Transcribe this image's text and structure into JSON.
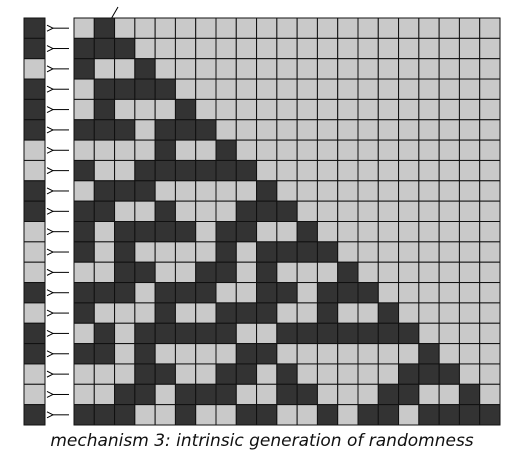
{
  "cells": [
    [
      0,
      1,
      0,
      0,
      0,
      0,
      0,
      0,
      0,
      0,
      0,
      0,
      0,
      0,
      0,
      0,
      0,
      0,
      0,
      0,
      0
    ],
    [
      1,
      1,
      1,
      0,
      0,
      0,
      0,
      0,
      0,
      0,
      0,
      0,
      0,
      0,
      0,
      0,
      0,
      0,
      0,
      0,
      0
    ],
    [
      1,
      0,
      0,
      1,
      0,
      0,
      0,
      0,
      0,
      0,
      0,
      0,
      0,
      0,
      0,
      0,
      0,
      0,
      0,
      0,
      0
    ],
    [
      0,
      1,
      1,
      1,
      1,
      0,
      0,
      0,
      0,
      0,
      0,
      0,
      0,
      0,
      0,
      0,
      0,
      0,
      0,
      0,
      0
    ],
    [
      0,
      1,
      0,
      0,
      0,
      1,
      0,
      0,
      0,
      0,
      0,
      0,
      0,
      0,
      0,
      0,
      0,
      0,
      0,
      0,
      0
    ],
    [
      1,
      1,
      1,
      0,
      1,
      1,
      1,
      0,
      0,
      0,
      0,
      0,
      0,
      0,
      0,
      0,
      0,
      0,
      0,
      0,
      0
    ],
    [
      0,
      0,
      0,
      0,
      1,
      0,
      0,
      1,
      0,
      0,
      0,
      0,
      0,
      0,
      0,
      0,
      0,
      0,
      0,
      0,
      0
    ],
    [
      1,
      0,
      0,
      1,
      1,
      1,
      1,
      1,
      1,
      0,
      0,
      0,
      0,
      0,
      0,
      0,
      0,
      0,
      0,
      0,
      0
    ],
    [
      0,
      1,
      1,
      1,
      0,
      0,
      0,
      0,
      0,
      1,
      0,
      0,
      0,
      0,
      0,
      0,
      0,
      0,
      0,
      0,
      0
    ],
    [
      1,
      1,
      0,
      0,
      1,
      0,
      0,
      0,
      1,
      1,
      1,
      0,
      0,
      0,
      0,
      0,
      0,
      0,
      0,
      0,
      0
    ],
    [
      1,
      0,
      1,
      1,
      1,
      1,
      0,
      1,
      1,
      0,
      0,
      1,
      0,
      0,
      0,
      0,
      0,
      0,
      0,
      0,
      0
    ],
    [
      1,
      0,
      1,
      0,
      0,
      0,
      0,
      1,
      0,
      1,
      1,
      1,
      1,
      0,
      0,
      0,
      0,
      0,
      0,
      0,
      0
    ],
    [
      0,
      0,
      1,
      1,
      0,
      0,
      1,
      1,
      0,
      1,
      0,
      0,
      0,
      1,
      0,
      0,
      0,
      0,
      0,
      0,
      0
    ],
    [
      1,
      1,
      1,
      0,
      1,
      1,
      1,
      0,
      0,
      1,
      1,
      0,
      1,
      1,
      1,
      0,
      0,
      0,
      0,
      0,
      0
    ],
    [
      1,
      0,
      0,
      0,
      1,
      0,
      0,
      1,
      1,
      1,
      0,
      0,
      1,
      0,
      0,
      1,
      0,
      0,
      0,
      0,
      0
    ],
    [
      0,
      1,
      0,
      1,
      1,
      1,
      1,
      1,
      0,
      0,
      1,
      1,
      1,
      1,
      1,
      1,
      1,
      0,
      0,
      0,
      0
    ],
    [
      1,
      1,
      0,
      1,
      0,
      0,
      0,
      0,
      1,
      1,
      0,
      0,
      0,
      0,
      0,
      0,
      0,
      1,
      0,
      0,
      0
    ],
    [
      0,
      0,
      0,
      1,
      1,
      0,
      0,
      1,
      1,
      0,
      1,
      0,
      0,
      0,
      0,
      0,
      1,
      1,
      1,
      0,
      0
    ],
    [
      0,
      0,
      1,
      1,
      0,
      1,
      1,
      1,
      0,
      0,
      1,
      1,
      0,
      0,
      0,
      1,
      1,
      0,
      0,
      1,
      0
    ],
    [
      1,
      1,
      1,
      0,
      0,
      1,
      0,
      0,
      1,
      1,
      0,
      0,
      1,
      0,
      1,
      1,
      0,
      1,
      1,
      1,
      1
    ]
  ],
  "caption": "mechanism 3: intrinsic generation of randomness"
}
